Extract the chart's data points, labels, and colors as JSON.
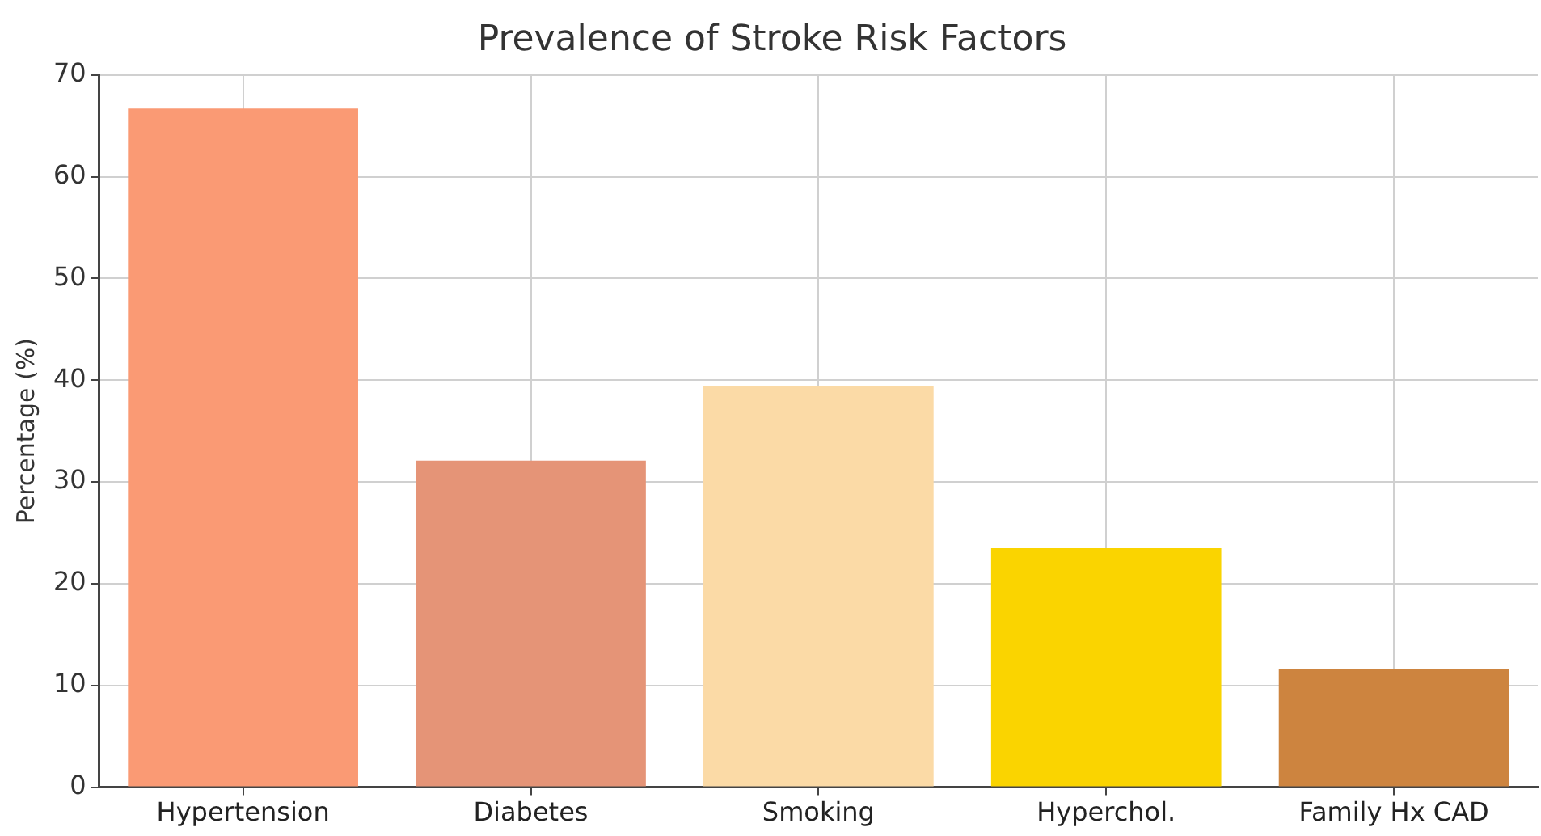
{
  "chart_data": {
    "type": "bar",
    "title": "Prevalence of Stroke Risk Factors",
    "ylabel": "Percentage (%)",
    "categories": [
      "Hypertension",
      "Diabetes",
      "Smoking",
      "Hyperchol.",
      "Family Hx CAD"
    ],
    "values": [
      66.7,
      32.1,
      39.4,
      23.5,
      11.6
    ],
    "colors": [
      "#fa9a74",
      "#e59477",
      "#fbdaa6",
      "#fad400",
      "#cd843f"
    ],
    "ylim": [
      0,
      70
    ],
    "yticks": [
      0,
      10,
      20,
      30,
      40,
      50,
      60,
      70
    ],
    "grid": true
  }
}
